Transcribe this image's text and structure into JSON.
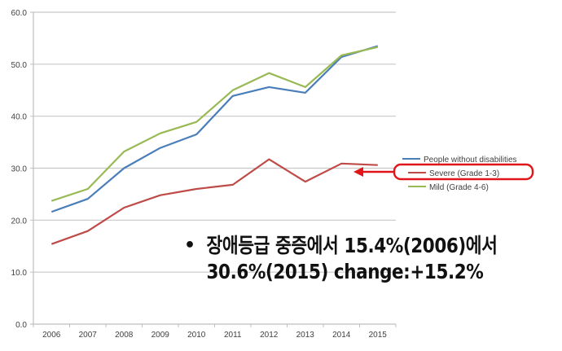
{
  "chart_data": {
    "type": "line",
    "title": "",
    "xlabel": "",
    "ylabel": "",
    "ylim": [
      0,
      60
    ],
    "yticks": [
      "0.0",
      "10.0",
      "20.0",
      "30.0",
      "40.0",
      "50.0",
      "60.0"
    ],
    "grid": true,
    "legend_position": "right",
    "categories": [
      "2006",
      "2007",
      "2008",
      "2009",
      "2010",
      "2011",
      "2012",
      "2013",
      "2014",
      "2015"
    ],
    "series": [
      {
        "name": "People without disabilities",
        "color": "#4a7ebb",
        "values": [
          21.6,
          24.1,
          30.0,
          33.9,
          36.5,
          43.9,
          45.6,
          44.5,
          51.4,
          53.5
        ]
      },
      {
        "name": "Severe (Grade 1-3)",
        "color": "#be4b48",
        "values": [
          15.4,
          17.9,
          22.4,
          24.8,
          26.0,
          26.8,
          31.7,
          27.4,
          30.9,
          30.6
        ]
      },
      {
        "name": "Mild (Grade 4-6)",
        "color": "#98b954",
        "values": [
          23.7,
          26.0,
          33.2,
          36.7,
          38.9,
          45.0,
          48.3,
          45.6,
          51.7,
          53.3
        ]
      }
    ],
    "annotations": [
      {
        "type": "highlight-box",
        "target": "Severe (Grade 1-3)",
        "color": "#e0161a"
      },
      {
        "type": "arrow",
        "points_to": "Severe (Grade 1-3)",
        "color": "#e0161a"
      }
    ]
  },
  "note": {
    "bullet": "•",
    "line1": "장애등급 중증에서 15.4%(2006)에서",
    "line2": "30.6%(2015) change:+15.2%"
  }
}
